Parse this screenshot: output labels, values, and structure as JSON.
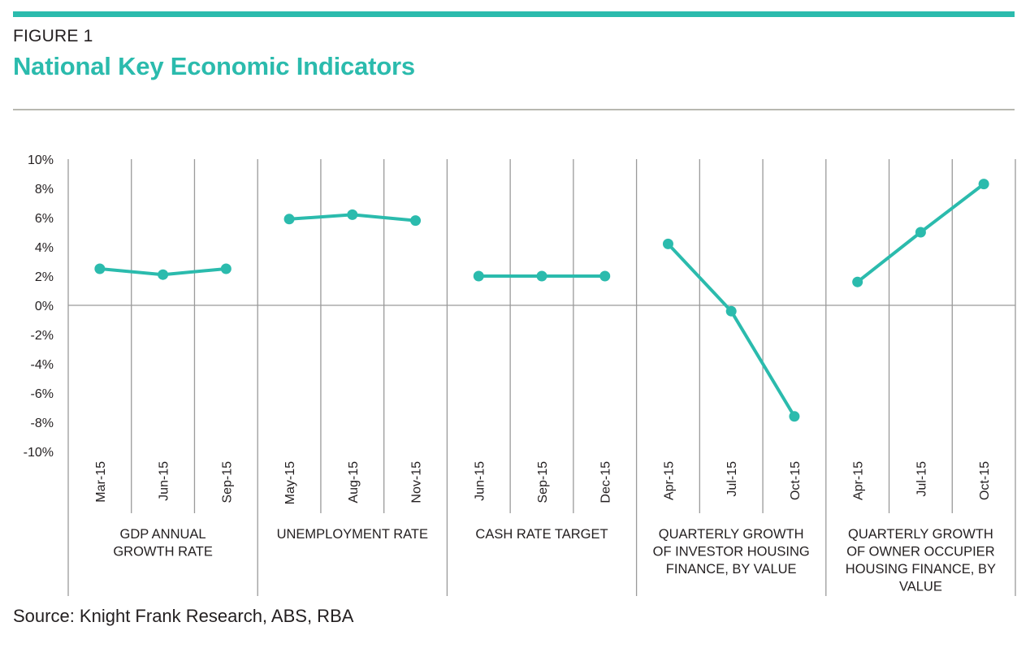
{
  "figure": {
    "label": "FIGURE 1",
    "title": "National Key Economic Indicators",
    "source": "Source: Knight Frank Research, ABS, RBA"
  },
  "colors": {
    "accent": "#2bbbad",
    "text": "#231f20",
    "grid": "#9a9a9a",
    "rule": "#b8b8b0"
  },
  "chart_data": {
    "type": "line",
    "ylim": [
      -10,
      10
    ],
    "y_ticks": [
      10,
      8,
      6,
      4,
      2,
      0,
      -2,
      -4,
      -6,
      -8,
      -10
    ],
    "y_tick_labels": [
      "10%",
      "8%",
      "6%",
      "4%",
      "2%",
      "0%",
      "-2%",
      "-4%",
      "-6%",
      "-8%",
      "-10%"
    ],
    "grid": true,
    "groups": [
      {
        "label_lines": [
          "GDP ANNUAL",
          "GROWTH RATE"
        ],
        "categories": [
          "Mar-15",
          "Jun-15",
          "Sep-15"
        ],
        "values": [
          2.5,
          2.1,
          2.5
        ]
      },
      {
        "label_lines": [
          "UNEMPLOYMENT RATE"
        ],
        "categories": [
          "May-15",
          "Aug-15",
          "Nov-15"
        ],
        "values": [
          5.9,
          6.2,
          5.8
        ]
      },
      {
        "label_lines": [
          "CASH RATE TARGET"
        ],
        "categories": [
          "Jun-15",
          "Sep-15",
          "Dec-15"
        ],
        "values": [
          2.0,
          2.0,
          2.0
        ]
      },
      {
        "label_lines": [
          "QUARTERLY GROWTH",
          "OF INVESTOR HOUSING",
          "FINANCE, BY VALUE"
        ],
        "categories": [
          "Apr-15",
          "Jul-15",
          "Oct-15"
        ],
        "values": [
          4.2,
          -0.4,
          -7.6
        ]
      },
      {
        "label_lines": [
          "QUARTERLY GROWTH",
          "OF OWNER OCCUPIER",
          "HOUSING FINANCE, BY",
          "VALUE"
        ],
        "categories": [
          "Apr-15",
          "Jul-15",
          "Oct-15"
        ],
        "values": [
          1.6,
          5.0,
          8.3
        ]
      }
    ]
  }
}
